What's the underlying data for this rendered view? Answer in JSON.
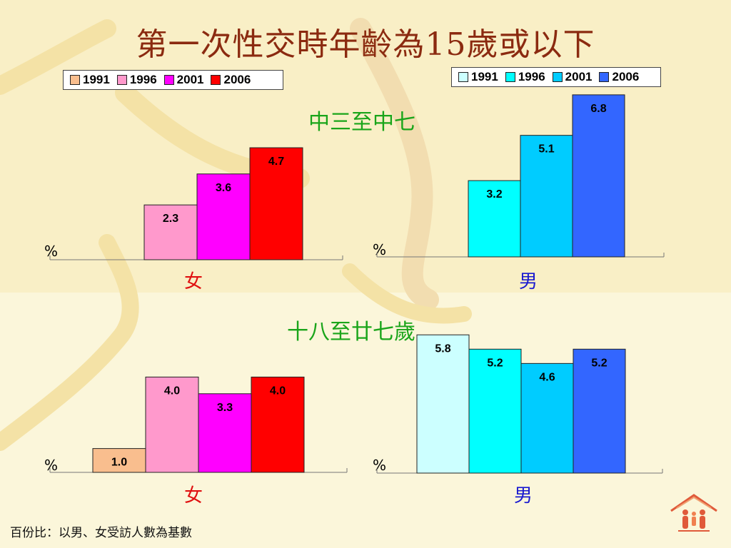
{
  "title": "第一次性交時年齡為15歲或以下",
  "footnote": "百份比：以男、女受訪人數為基數",
  "colors": {
    "female": [
      "#f9be8e",
      "#ff99cc",
      "#ff00ff",
      "#ff0000"
    ],
    "male": [
      "#ccffff",
      "#00ffff",
      "#00ccff",
      "#3366ff"
    ],
    "female_label": "#e01010",
    "male_label": "#1a1ad0",
    "section_label": "#1aa51a"
  },
  "legends": {
    "female": [
      "1991",
      "1996",
      "2001",
      "2006"
    ],
    "male": [
      "1991",
      "1996",
      "2001",
      "2006"
    ]
  },
  "sections": {
    "top": "中三至中七",
    "bottom": "十八至廿七歲"
  },
  "labels": {
    "percent": "%",
    "female": "女",
    "male": "男"
  },
  "chart_data": [
    {
      "type": "bar",
      "group": "中三至中七",
      "gender": "女",
      "categories": [
        "1991",
        "1996",
        "2001",
        "2006"
      ],
      "values": [
        null,
        2.3,
        3.6,
        4.7
      ],
      "ylabel": "%"
    },
    {
      "type": "bar",
      "group": "中三至中七",
      "gender": "男",
      "categories": [
        "1991",
        "1996",
        "2001",
        "2006"
      ],
      "values": [
        null,
        3.2,
        5.1,
        6.8
      ],
      "ylabel": "%"
    },
    {
      "type": "bar",
      "group": "十八至廿七歲",
      "gender": "女",
      "categories": [
        "1991",
        "1996",
        "2001",
        "2006"
      ],
      "values": [
        1.0,
        4.0,
        3.3,
        4.0
      ],
      "ylabel": "%"
    },
    {
      "type": "bar",
      "group": "十八至廿七歲",
      "gender": "男",
      "categories": [
        "1991",
        "1996",
        "2001",
        "2006"
      ],
      "values": [
        5.8,
        5.2,
        4.6,
        5.2
      ],
      "ylabel": "%"
    }
  ]
}
